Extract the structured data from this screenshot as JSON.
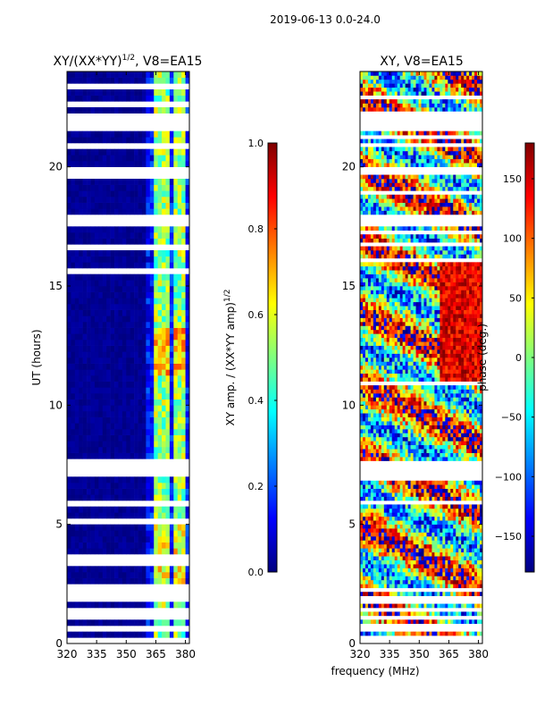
{
  "suptitle": "2019-06-13 0.0-24.0",
  "shared_xlabel": "frequency (MHz)",
  "colormap": [
    "#00007f",
    "#0000ff",
    "#007fff",
    "#00ffff",
    "#7fff7f",
    "#ffff00",
    "#ff7f00",
    "#ff0000",
    "#7f0000"
  ],
  "gap_color": "#ffffff",
  "chart_data": [
    {
      "type": "heatmap",
      "title_main": "XY/(XX*YY)",
      "title_sup": "1/2",
      "title_tail": ", V8=EA15",
      "xlabel": "",
      "ylabel": "UT (hours)",
      "xlim": [
        320,
        382
      ],
      "ylim": [
        0,
        24
      ],
      "xticks": [
        320,
        335,
        350,
        365,
        380
      ],
      "xtick_labels": [
        "320",
        "335",
        "350",
        "365",
        "380"
      ],
      "yticks": [
        0,
        5,
        10,
        15,
        20
      ],
      "ytick_labels": [
        "0",
        "5",
        "10",
        "15",
        "20"
      ],
      "colorbar": {
        "label_main": "XY amp. / (XX*YY amp)",
        "label_sup": "1/2",
        "range": [
          0.0,
          1.0
        ],
        "ticks": [
          0.0,
          0.2,
          0.4,
          0.6,
          0.8,
          1.0
        ],
        "tick_labels": [
          "0.0",
          "0.2",
          "0.4",
          "0.6",
          "0.8",
          "1.0"
        ]
      }
    },
    {
      "type": "heatmap",
      "title_main": "XY, V8=EA15",
      "title_sup": "",
      "title_tail": "",
      "xlabel": "frequency (MHz)",
      "ylabel": "",
      "xlim": [
        320,
        382
      ],
      "ylim": [
        0,
        24
      ],
      "xticks": [
        320,
        335,
        350,
        365,
        380
      ],
      "xtick_labels": [
        "320",
        "335",
        "350",
        "365",
        "380"
      ],
      "yticks": [
        0,
        5,
        10,
        15,
        20
      ],
      "ytick_labels": [
        "0",
        "5",
        "10",
        "15",
        "20"
      ],
      "colorbar": {
        "label_main": "phase (deg.)",
        "label_sup": "",
        "range": [
          -180,
          180
        ],
        "ticks": [
          -150,
          -100,
          -50,
          0,
          50,
          100,
          150
        ],
        "tick_labels": [
          "−150",
          "−100",
          "−50",
          "0",
          "50",
          "100",
          "150"
        ]
      }
    }
  ],
  "time_gaps_hours": [
    [
      0.0,
      0.3
    ],
    [
      0.5,
      0.8
    ],
    [
      0.95,
      1.15
    ],
    [
      1.3,
      1.5
    ],
    [
      1.7,
      2.0
    ],
    [
      2.1,
      2.4
    ],
    [
      3.3,
      3.4
    ],
    [
      3.6,
      3.7
    ],
    [
      5.1,
      5.2
    ],
    [
      5.85,
      6.0
    ],
    [
      6.9,
      7.7
    ],
    [
      8.5,
      8.55
    ],
    [
      9.7,
      9.75
    ],
    [
      10.9,
      11.0
    ],
    [
      11.15,
      11.25
    ],
    [
      15.6,
      15.75
    ],
    [
      16.0,
      16.1
    ],
    [
      16.6,
      16.8
    ],
    [
      17.2,
      17.3
    ],
    [
      17.5,
      18.0
    ],
    [
      18.9,
      19.0
    ],
    [
      19.6,
      20.0
    ],
    [
      20.85,
      20.95
    ],
    [
      21.2,
      21.3
    ],
    [
      21.5,
      22.3
    ],
    [
      22.6,
      22.7
    ],
    [
      22.9,
      23.05
    ],
    [
      23.3,
      23.4
    ],
    [
      23.65,
      23.75
    ]
  ],
  "amp_bright_bands_mhz": [
    [
      363.5,
      366
    ],
    [
      367,
      369.5
    ],
    [
      371,
      373
    ],
    [
      373.5,
      375.5
    ],
    [
      376.5,
      378.5
    ],
    [
      379,
      381
    ]
  ]
}
